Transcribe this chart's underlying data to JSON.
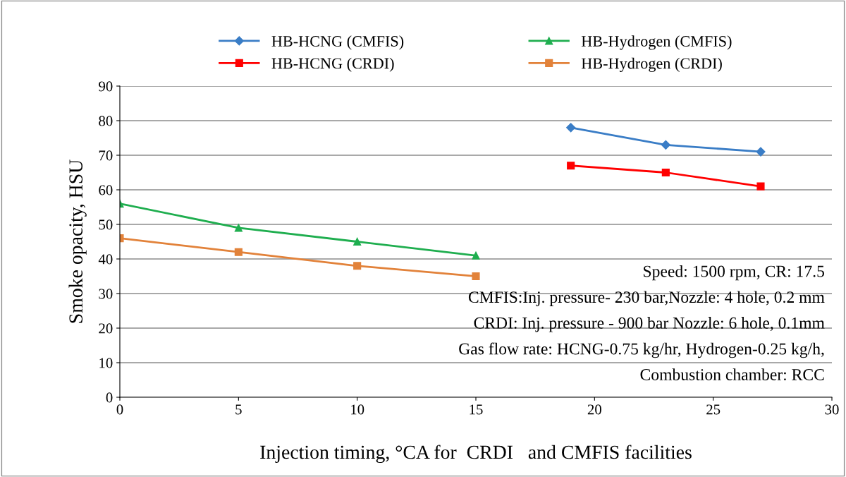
{
  "chart_data": {
    "type": "line",
    "xlabel": "Injection timing, °CA for  CRDI   and CMFIS facilities",
    "ylabel": "Smoke opacity, HSU",
    "series": [
      {
        "name": "HB-HCNG (CMFIS)",
        "color": "#3a7dc6",
        "marker": "diamond",
        "x": [
          19,
          23,
          27
        ],
        "values": [
          78,
          73,
          71
        ]
      },
      {
        "name": "HB-HCNG (CRDI)",
        "color": "#ff0000",
        "marker": "square",
        "x": [
          19,
          23,
          27
        ],
        "values": [
          67,
          65,
          61
        ]
      },
      {
        "name": "HB-Hydrogen (CMFIS)",
        "color": "#1fae4f",
        "marker": "triangle",
        "x": [
          0,
          5,
          10,
          15
        ],
        "values": [
          56,
          49,
          45,
          41
        ]
      },
      {
        "name": "HB-Hydrogen (CRDI)",
        "color": "#e2823a",
        "marker": "square",
        "x": [
          0,
          5,
          10,
          15
        ],
        "values": [
          46,
          42,
          38,
          35
        ]
      }
    ],
    "xlim": [
      0,
      30
    ],
    "xticks": [
      0,
      5,
      10,
      15,
      20,
      25,
      30
    ],
    "ylim": [
      0,
      90
    ],
    "yticks": [
      0,
      10,
      20,
      30,
      40,
      50,
      60,
      70,
      80,
      90
    ],
    "grid": "y",
    "legend": "top",
    "line_style": "solid",
    "annotations": [
      "Speed: 1500 rpm, CR: 17.5",
      "CMFIS:Inj. pressure- 230 bar,Nozzle: 4 hole, 0.2 mm",
      "CRDI: Inj. pressure - 900 bar Nozzle: 6 hole, 0.1mm",
      "Gas flow rate: HCNG-0.75 kg/hr, Hydrogen-0.25 kg/h,",
      "Combustion chamber: RCC"
    ]
  }
}
